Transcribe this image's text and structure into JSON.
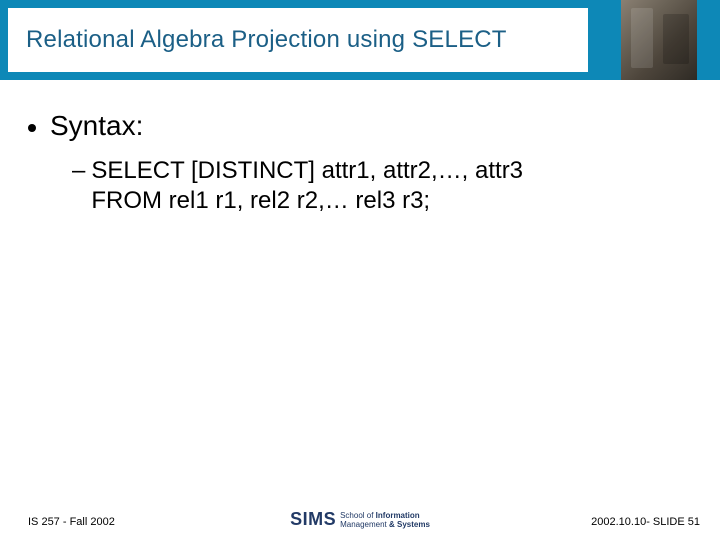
{
  "slide": {
    "title": "Relational Algebra Projection using SELECT",
    "title_color": "#1b5f86",
    "title_fontsize": 24,
    "header_band_color": "#0d88b7",
    "background_color": "#ffffff"
  },
  "content": {
    "level1": {
      "text": "Syntax:",
      "fontsize": 28,
      "bullet": "•"
    },
    "level2": {
      "dash": "–",
      "line1": "SELECT  [DISTINCT] attr1, attr2,…, attr3",
      "line2": "FROM rel1 r1, rel2 r2,… rel3 r3;",
      "fontsize": 24
    }
  },
  "footer": {
    "left": "IS 257 - Fall 2002",
    "right": "2002.10.10- SLIDE 51",
    "logo_main": "SIMS",
    "logo_line1": "School of",
    "logo_line2": "Information",
    "logo_line3": "Management",
    "logo_line4": "& Systems",
    "fontsize": 11,
    "logo_color": "#223a66"
  }
}
